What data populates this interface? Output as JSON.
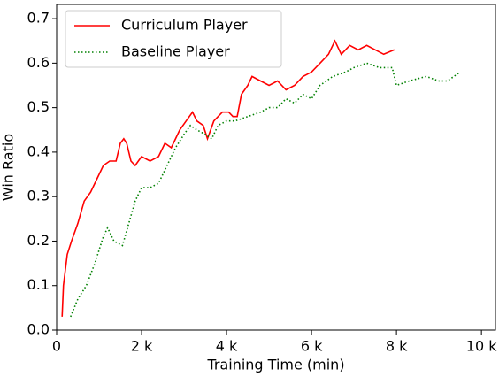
{
  "chart_data": {
    "type": "line",
    "xlabel": "Training Time (min)",
    "ylabel": "Win Ratio",
    "xlim": [
      0,
      10330
    ],
    "ylim": [
      0,
      0.732
    ],
    "xticks": [
      0,
      {
        "value": 2000,
        "label": "2 k"
      },
      {
        "value": 4000,
        "label": "4 k"
      },
      {
        "value": 6000,
        "label": "6 k"
      },
      {
        "value": 8000,
        "label": "8 k"
      },
      {
        "value": 10000,
        "label": "10 k"
      }
    ],
    "yticks": [
      {
        "value": 0,
        "label": "0.0"
      },
      0.1,
      0.2,
      0.3,
      0.4,
      0.5,
      0.6,
      0.7
    ],
    "legend": "upper left",
    "series": [
      {
        "name": "Curriculum Player",
        "color": "#ff0000",
        "style": "solid",
        "x": [
          130,
          160,
          250,
          350,
          500,
          650,
          800,
          950,
          1100,
          1250,
          1400,
          1500,
          1580,
          1650,
          1750,
          1850,
          2000,
          2200,
          2400,
          2550,
          2700,
          2900,
          3050,
          3200,
          3300,
          3450,
          3550,
          3700,
          3900,
          4050,
          4150,
          4250,
          4350,
          4500,
          4600,
          4800,
          5000,
          5200,
          5400,
          5600,
          5800,
          6000,
          6200,
          6400,
          6550,
          6700,
          6900,
          7100,
          7300,
          7500,
          7700,
          7950
        ],
        "values": [
          0.03,
          0.1,
          0.17,
          0.2,
          0.24,
          0.29,
          0.31,
          0.34,
          0.37,
          0.38,
          0.38,
          0.42,
          0.43,
          0.42,
          0.38,
          0.37,
          0.39,
          0.38,
          0.39,
          0.42,
          0.41,
          0.45,
          0.47,
          0.49,
          0.47,
          0.46,
          0.43,
          0.47,
          0.49,
          0.49,
          0.48,
          0.48,
          0.53,
          0.55,
          0.57,
          0.56,
          0.55,
          0.56,
          0.54,
          0.55,
          0.57,
          0.58,
          0.6,
          0.62,
          0.65,
          0.62,
          0.64,
          0.63,
          0.64,
          0.63,
          0.62,
          0.63
        ]
      },
      {
        "name": "Baseline Player",
        "color": "#008000",
        "style": "dotted",
        "x": [
          330,
          500,
          700,
          900,
          1100,
          1200,
          1350,
          1550,
          1700,
          1850,
          2000,
          2200,
          2400,
          2600,
          2800,
          3000,
          3150,
          3300,
          3500,
          3650,
          3800,
          4000,
          4200,
          4500,
          4800,
          5000,
          5200,
          5400,
          5600,
          5800,
          6000,
          6200,
          6500,
          6800,
          7000,
          7300,
          7600,
          7900,
          8000,
          8300,
          8700,
          9000,
          9200,
          9500
        ],
        "values": [
          0.03,
          0.07,
          0.1,
          0.15,
          0.21,
          0.23,
          0.2,
          0.19,
          0.24,
          0.29,
          0.32,
          0.32,
          0.33,
          0.37,
          0.41,
          0.44,
          0.46,
          0.45,
          0.44,
          0.43,
          0.46,
          0.47,
          0.47,
          0.48,
          0.49,
          0.5,
          0.5,
          0.52,
          0.51,
          0.53,
          0.52,
          0.55,
          0.57,
          0.58,
          0.59,
          0.6,
          0.59,
          0.59,
          0.55,
          0.56,
          0.57,
          0.56,
          0.56,
          0.58
        ]
      }
    ]
  }
}
